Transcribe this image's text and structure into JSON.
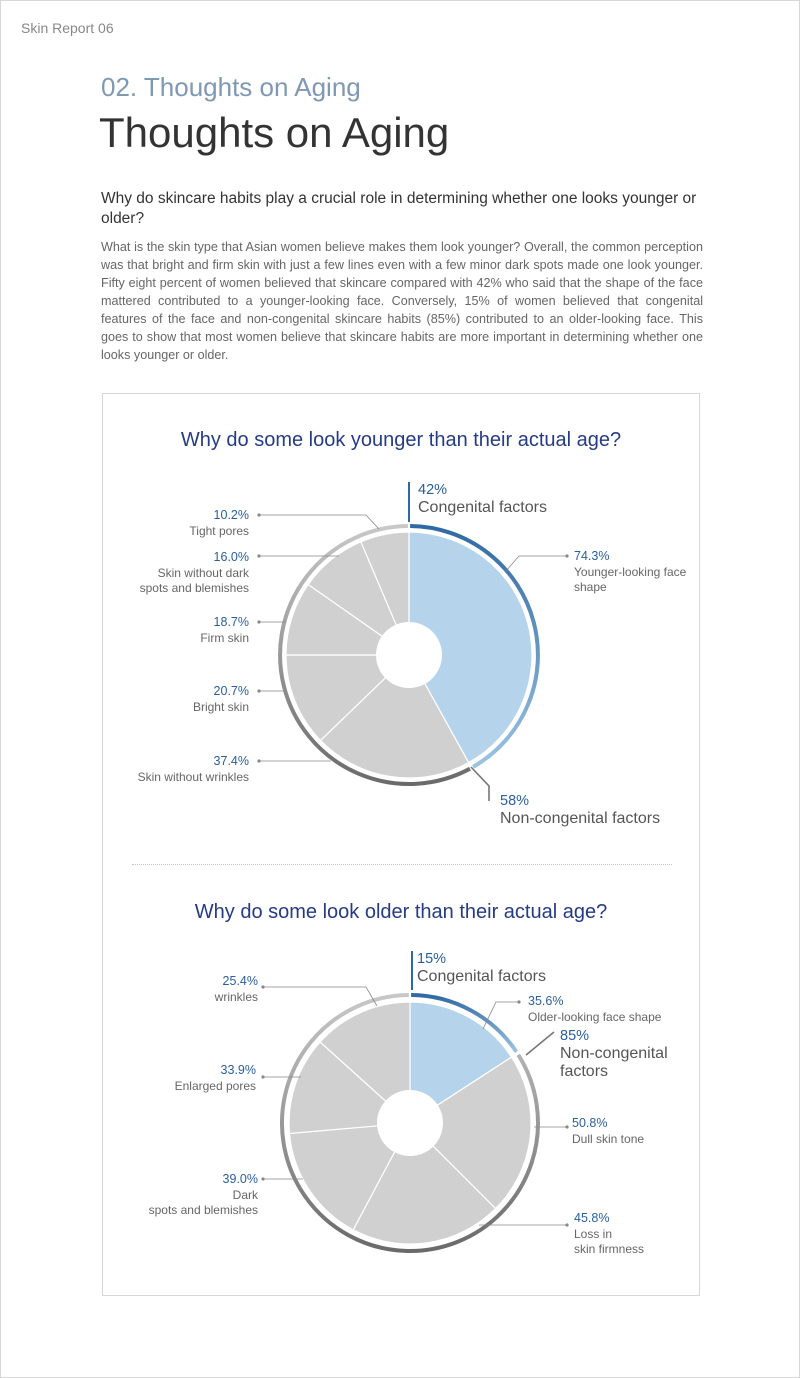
{
  "header": {
    "report_label": "Skin Report 06"
  },
  "section": {
    "number_title": "02. Thoughts on Aging",
    "title": "Thoughts on Aging"
  },
  "intro": {
    "question": "Why do skincare habits play a crucial role in determining whether one looks younger or older?",
    "body": "What is the skin type that Asian women believe makes them look younger? Overall, the common perception was that bright and firm skin with just a few lines even with a few minor dark spots made one look younger. Fifty eight percent of women believed that skincare compared with 42% who said that the shape of the face mattered contributed to a younger-looking face. Conversely, 15% of women believed that congenital features of the face and non-congenital skincare habits (85%) contributed to an older-looking face. This goes to show that most women believe that skincare habits are more important in determining whether one looks younger or older."
  },
  "colors": {
    "accent_blue": "#2f69a3",
    "light_blue": "#b5d4ec",
    "gray_slice": "#d0d0d0",
    "title_navy": "#263b85",
    "pct_blue": "#2a5f9e"
  },
  "chart_data": [
    {
      "type": "pie",
      "title": "Why do some look younger than their actual age?",
      "groups": [
        {
          "value": "42%",
          "label": "Congenital factors",
          "share": 42
        },
        {
          "value": "58%",
          "label": "Non-congenital factors",
          "share": 58
        }
      ],
      "slices": [
        {
          "value": "74.3%",
          "label": "Younger-looking face shape",
          "group": "congenital"
        },
        {
          "value": "37.4%",
          "label": "Skin without wrinkles",
          "group": "non-congenital"
        },
        {
          "value": "20.7%",
          "label": "Bright skin",
          "group": "non-congenital"
        },
        {
          "value": "18.7%",
          "label": "Firm skin",
          "group": "non-congenital"
        },
        {
          "value": "16.0%",
          "label": "Skin without dark spots and blemishes",
          "group": "non-congenital"
        },
        {
          "value": "10.2%",
          "label": "Tight pores",
          "group": "non-congenital"
        }
      ]
    },
    {
      "type": "pie",
      "title": "Why do some look older than their actual age?",
      "groups": [
        {
          "value": "15%",
          "label": "Congenital factors",
          "share": 15
        },
        {
          "value": "85%",
          "label": "Non-congenital factors",
          "share": 85
        }
      ],
      "slices": [
        {
          "value": "35.6%",
          "label": "Older-looking face shape",
          "group": "congenital"
        },
        {
          "value": "50.8%",
          "label": "Dull skin tone",
          "group": "non-congenital"
        },
        {
          "value": "45.8%",
          "label": "Loss in skin firmness",
          "group": "non-congenital"
        },
        {
          "value": "39.0%",
          "label": "Dark spots and blemishes",
          "group": "non-congenital"
        },
        {
          "value": "33.9%",
          "label": "Enlarged pores",
          "group": "non-congenital"
        },
        {
          "value": "25.4%",
          "label": "wrinkles",
          "group": "non-congenital"
        }
      ]
    }
  ]
}
